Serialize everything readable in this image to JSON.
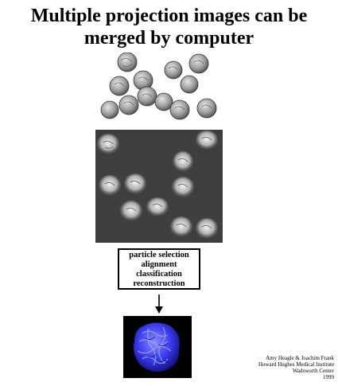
{
  "title": {
    "line1": "Multiple projection images can be",
    "line2": "merged by computer"
  },
  "process_steps": [
    "particle selection",
    "alignment",
    "classification",
    "reconstruction"
  ],
  "credits": [
    "Amy Heagle & Joachim Frank",
    "Howard Hughes Medical Institute",
    "Wadsworth Center",
    "1999"
  ],
  "colors": {
    "micrograph_background": "#3f3f3f",
    "reconstruction_background": "#000000",
    "reconstruction_map": "#3a3af0",
    "particle_gray": "#9a9a9a"
  }
}
